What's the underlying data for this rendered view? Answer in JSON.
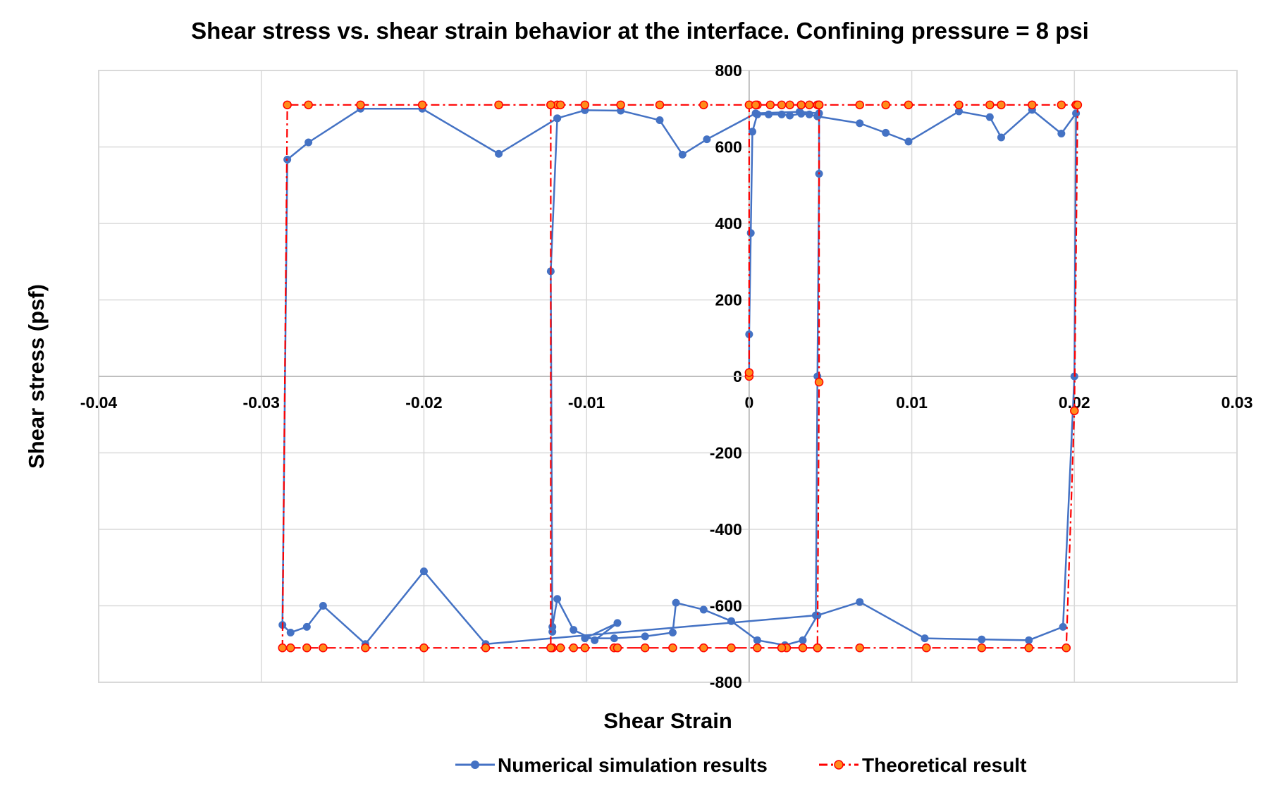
{
  "chart_data": {
    "type": "scatter",
    "title": "Shear stress vs. shear strain behavior at the interface. Confining pressure = 8 psi",
    "xlabel": "Shear Strain",
    "ylabel": "Shear stress (psf)",
    "xlim": [
      -0.04,
      0.03
    ],
    "ylim": [
      -800,
      800
    ],
    "x_ticks": [
      -0.04,
      -0.03,
      -0.02,
      -0.01,
      0,
      0.01,
      0.02,
      0.03
    ],
    "x_tick_labels": [
      "-0.04",
      "-0.03",
      "-0.02",
      "-0.01",
      "0",
      "0.01",
      "0.02",
      "0.03"
    ],
    "y_ticks": [
      -800,
      -600,
      -400,
      -200,
      0,
      200,
      400,
      600,
      800
    ],
    "y_tick_labels": [
      "-800",
      "-600",
      "-400",
      "-200",
      "0",
      "200",
      "400",
      "600",
      "800"
    ],
    "grid": true,
    "legend_position": "bottom",
    "series": [
      {
        "name": "Numerical simulation results",
        "color": "#4472C4",
        "line_style": "solid",
        "marker": "circle",
        "points": [
          [
            0,
            0
          ],
          [
            0,
            110
          ],
          [
            0.0001,
            375
          ],
          [
            0.0002,
            640
          ],
          [
            0.0005,
            685
          ],
          [
            0.0012,
            685
          ],
          [
            0.002,
            685
          ],
          [
            0.0025,
            682
          ],
          [
            0.0032,
            687
          ],
          [
            0.0037,
            685
          ],
          [
            0.0042,
            680
          ],
          [
            0.0068,
            662
          ],
          [
            0.0084,
            637
          ],
          [
            0.0098,
            614
          ],
          [
            0.0129,
            693
          ],
          [
            0.0148,
            678
          ],
          [
            0.0155,
            625
          ],
          [
            0.0174,
            697
          ],
          [
            0.0192,
            635
          ],
          [
            0.0201,
            688
          ],
          [
            0.02,
            0
          ],
          [
            0.0193,
            -655
          ],
          [
            0.0172,
            -690
          ],
          [
            0.0143,
            -688
          ],
          [
            0.0108,
            -685
          ],
          [
            0.0068,
            -590
          ],
          [
            0.0042,
            -625
          ],
          [
            0.0033,
            -690
          ],
          [
            0.0022,
            -703
          ],
          [
            0.0005,
            -690
          ],
          [
            -0.0011,
            -640
          ],
          [
            -0.0028,
            -610
          ],
          [
            -0.0045,
            -592
          ],
          [
            -0.0047,
            -670
          ],
          [
            -0.0064,
            -680
          ],
          [
            -0.0083,
            -685
          ],
          [
            -0.0101,
            -685
          ],
          [
            -0.0081,
            -645
          ],
          [
            -0.0095,
            -690
          ],
          [
            -0.0108,
            -663
          ],
          [
            -0.0118,
            -582
          ],
          [
            -0.0121,
            -655
          ],
          [
            -0.0121,
            -668
          ],
          [
            -0.0122,
            275
          ],
          [
            -0.0118,
            675
          ],
          [
            -0.0101,
            696
          ],
          [
            -0.0079,
            695
          ],
          [
            -0.0055,
            670
          ],
          [
            -0.0041,
            580
          ],
          [
            -0.0026,
            620
          ],
          [
            0.0004,
            688
          ],
          [
            0.0031,
            692
          ],
          [
            0.0043,
            688
          ],
          [
            0.0043,
            530
          ],
          [
            0.0042,
            0
          ],
          [
            0.0041,
            -625
          ],
          [
            -0.0162,
            -700
          ],
          [
            -0.02,
            -510
          ],
          [
            -0.0236,
            -700
          ],
          [
            -0.0262,
            -600
          ],
          [
            -0.0272,
            -655
          ],
          [
            -0.0282,
            -670
          ],
          [
            -0.0287,
            -650
          ],
          [
            -0.0284,
            567
          ],
          [
            -0.0271,
            612
          ],
          [
            -0.0239,
            700
          ],
          [
            -0.0201,
            700
          ],
          [
            -0.0154,
            582
          ],
          [
            -0.0118,
            675
          ]
        ]
      },
      {
        "name": "Theoretical result",
        "color": "#FF0000",
        "line_style": "dashdot",
        "marker": "circle",
        "marker_fill": "#FF8C1A",
        "points": [
          [
            0,
            0
          ],
          [
            0,
            10
          ],
          [
            0,
            710
          ],
          [
            0.0005,
            710
          ],
          [
            0.0013,
            710
          ],
          [
            0.002,
            710
          ],
          [
            0.0025,
            710
          ],
          [
            0.0032,
            710
          ],
          [
            0.0037,
            710
          ],
          [
            0.0042,
            710
          ],
          [
            0.0043,
            710
          ],
          [
            0.0068,
            710
          ],
          [
            0.0084,
            710
          ],
          [
            0.0098,
            710
          ],
          [
            0.0129,
            710
          ],
          [
            0.0148,
            710
          ],
          [
            0.0155,
            710
          ],
          [
            0.0174,
            710
          ],
          [
            0.0192,
            710
          ],
          [
            0.0201,
            710
          ],
          [
            0.0202,
            710
          ],
          [
            0.02,
            -90
          ],
          [
            0.0195,
            -710
          ],
          [
            0.0172,
            -710
          ],
          [
            0.0143,
            -710
          ],
          [
            0.0109,
            -710
          ],
          [
            0.0068,
            -710
          ],
          [
            0.0042,
            -710
          ],
          [
            0.0033,
            -710
          ],
          [
            0.0023,
            -710
          ],
          [
            0.002,
            -710
          ],
          [
            0.0005,
            -710
          ],
          [
            -0.0011,
            -710
          ],
          [
            -0.0028,
            -710
          ],
          [
            -0.0047,
            -710
          ],
          [
            -0.0064,
            -710
          ],
          [
            -0.0083,
            -710
          ],
          [
            -0.0101,
            -710
          ],
          [
            -0.0081,
            -710
          ],
          [
            -0.0108,
            -710
          ],
          [
            -0.0116,
            -710
          ],
          [
            -0.0121,
            -710
          ],
          [
            -0.0122,
            -710
          ],
          [
            -0.0122,
            710
          ],
          [
            -0.0118,
            710
          ],
          [
            -0.0101,
            710
          ],
          [
            -0.0079,
            710
          ],
          [
            -0.0055,
            710
          ],
          [
            -0.0028,
            710
          ],
          [
            0.0004,
            710
          ],
          [
            0.0032,
            710
          ],
          [
            0.0043,
            710
          ],
          [
            0.0043,
            710
          ],
          [
            0.0043,
            -15
          ],
          [
            0.0042,
            -710
          ],
          [
            -0.0162,
            -710
          ],
          [
            -0.02,
            -710
          ],
          [
            -0.0236,
            -710
          ],
          [
            -0.0262,
            -710
          ],
          [
            -0.0272,
            -710
          ],
          [
            -0.0282,
            -710
          ],
          [
            -0.0287,
            -710
          ],
          [
            -0.0284,
            710
          ],
          [
            -0.0271,
            710
          ],
          [
            -0.0239,
            710
          ],
          [
            -0.0201,
            710
          ],
          [
            -0.0154,
            710
          ],
          [
            -0.0122,
            710
          ],
          [
            -0.0116,
            710
          ]
        ]
      }
    ]
  }
}
